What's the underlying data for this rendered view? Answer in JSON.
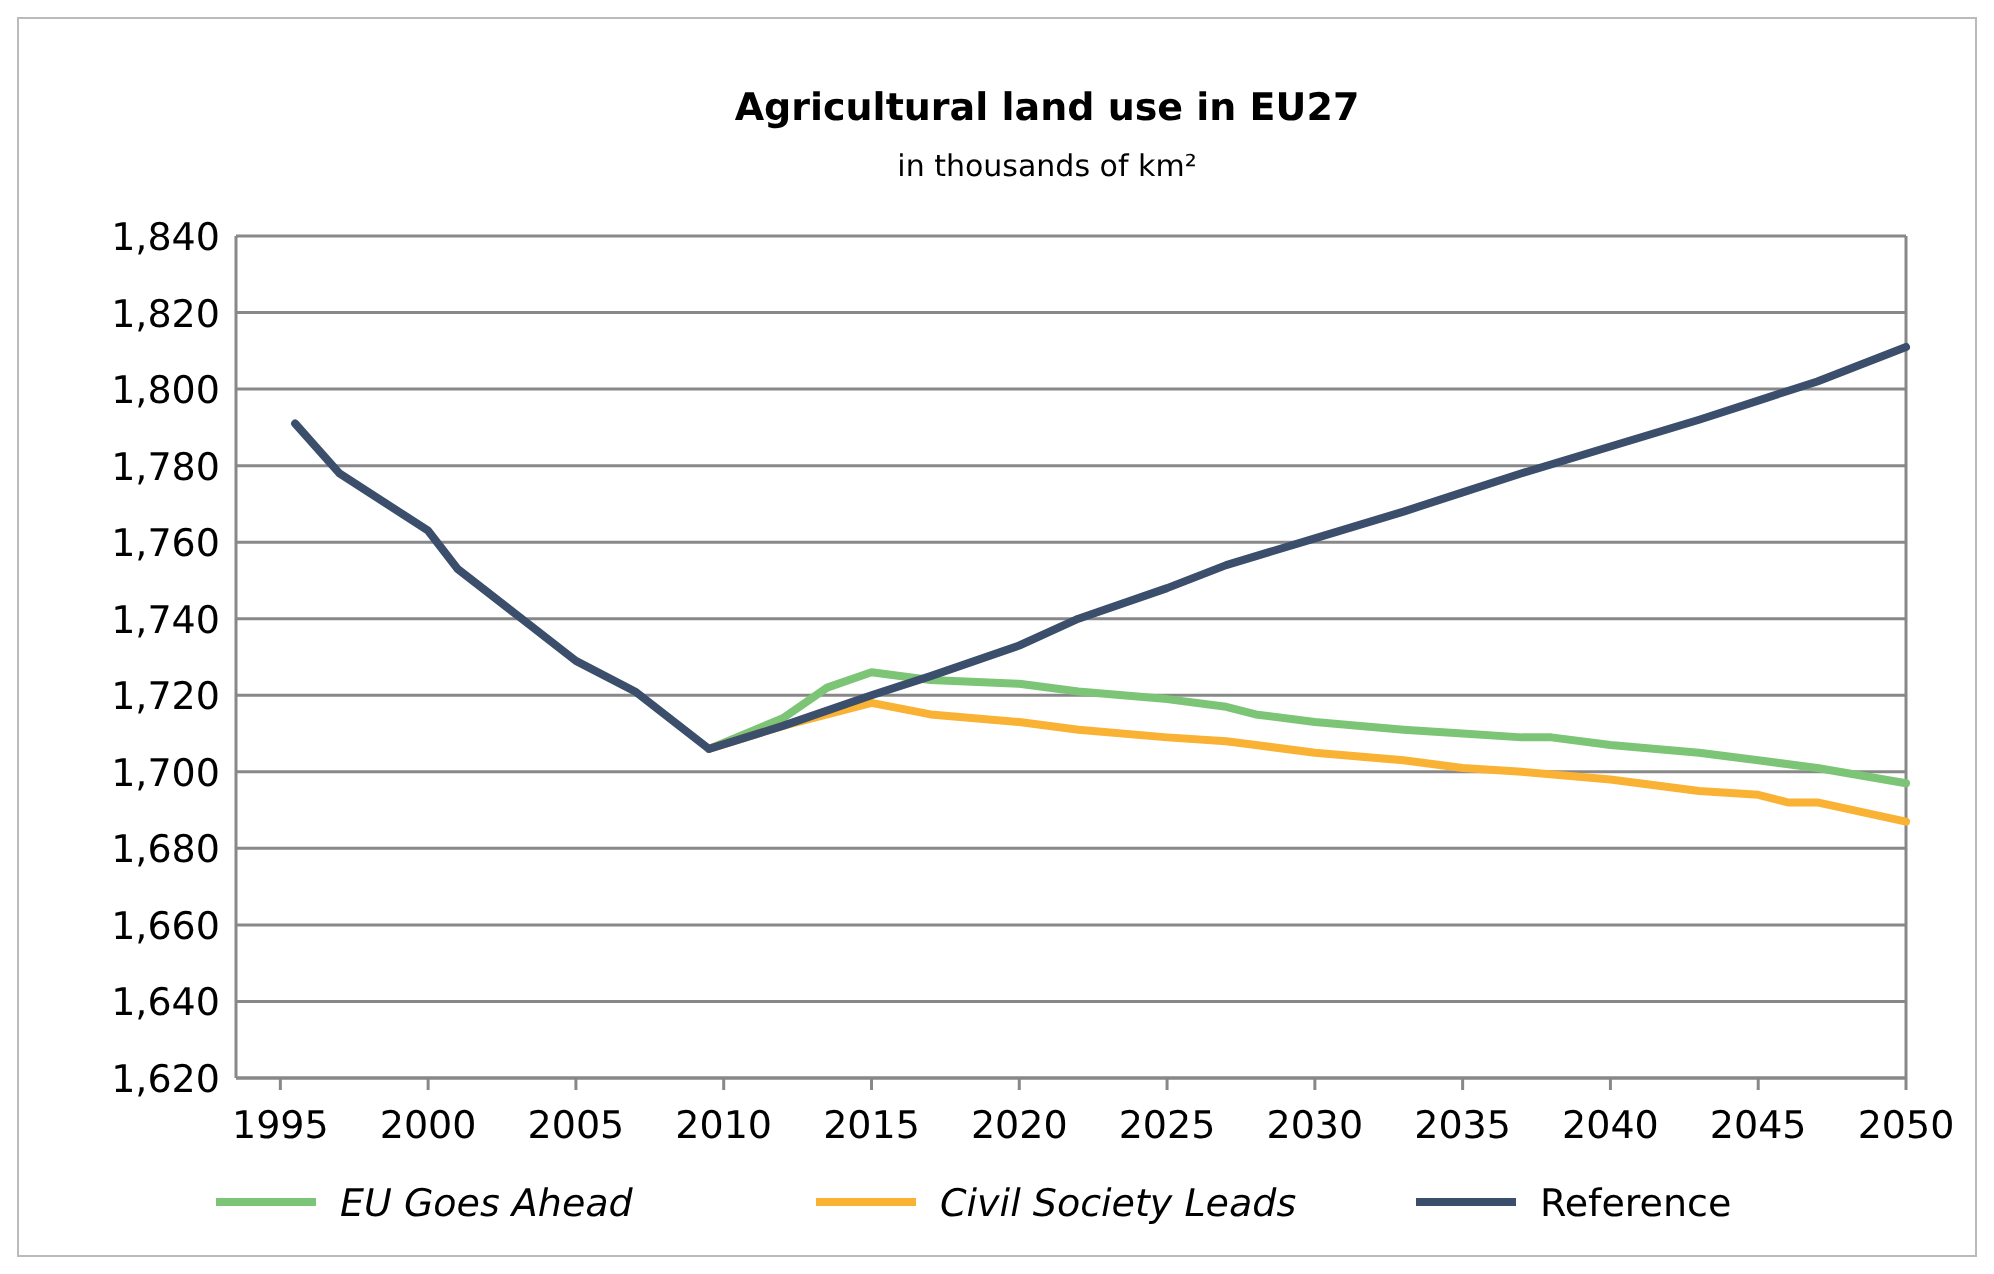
{
  "chart_data": {
    "type": "line",
    "title": "Agricultural land use in EU27",
    "subtitle": "in thousands of km²",
    "xlim": [
      1993.5,
      2050
    ],
    "xticks": [
      1995,
      2000,
      2005,
      2010,
      2015,
      2020,
      2025,
      2030,
      2035,
      2040,
      2045,
      2050
    ],
    "ylim": [
      1620,
      1840
    ],
    "yticks": [
      {
        "value": 1620,
        "label": "1,620"
      },
      {
        "value": 1640,
        "label": "1,640"
      },
      {
        "value": 1660,
        "label": "1,660"
      },
      {
        "value": 1680,
        "label": "1,680"
      },
      {
        "value": 1700,
        "label": "1,700"
      },
      {
        "value": 1720,
        "label": "1,720"
      },
      {
        "value": 1740,
        "label": "1,740"
      },
      {
        "value": 1760,
        "label": "1,760"
      },
      {
        "value": 1780,
        "label": "1,780"
      },
      {
        "value": 1800,
        "label": "1,800"
      },
      {
        "value": 1820,
        "label": "1,820"
      },
      {
        "value": 1840,
        "label": "1,840"
      }
    ],
    "grid": "y",
    "legend": "bottom",
    "marker": "none",
    "line_style": "solid",
    "series": [
      {
        "name": "EU Goes Ahead",
        "color": "#7cc576",
        "x": [
          2009.5,
          2012,
          2013.5,
          2015,
          2017,
          2020,
          2022,
          2025,
          2027,
          2028,
          2030,
          2033,
          2035,
          2037,
          2038,
          2040,
          2043,
          2045,
          2047,
          2050
        ],
        "values": [
          1706,
          1714,
          1722,
          1726,
          1724,
          1723,
          1721,
          1719,
          1717,
          1715,
          1713,
          1711,
          1710,
          1709,
          1709,
          1707,
          1705,
          1703,
          1701,
          1697
        ]
      },
      {
        "name": "Civil Society Leads",
        "color": "#f9b233",
        "x": [
          2009.5,
          2012,
          2015,
          2017,
          2020,
          2022,
          2025,
          2027,
          2028,
          2030,
          2033,
          2035,
          2037,
          2040,
          2043,
          2045,
          2046,
          2047,
          2050
        ],
        "values": [
          1706,
          1712,
          1718,
          1715,
          1713,
          1711,
          1709,
          1708,
          1707,
          1705,
          1703,
          1701,
          1700,
          1698,
          1695,
          1694,
          1692,
          1692,
          1687
        ]
      },
      {
        "name": "Reference",
        "color": "#3b4e6b",
        "x": [
          1995.5,
          1997,
          2000,
          2001,
          2003,
          2005,
          2007,
          2009.5,
          2012,
          2015,
          2017,
          2020,
          2022,
          2025,
          2027,
          2030,
          2033,
          2035,
          2037,
          2040,
          2043,
          2045,
          2047,
          2050
        ],
        "values": [
          1791,
          1778,
          1763,
          1753,
          1741,
          1729,
          1721,
          1706,
          1712,
          1720,
          1725,
          1733,
          1740,
          1748,
          1754,
          1761,
          1768,
          1773,
          1778,
          1785,
          1792,
          1797,
          1802,
          1811
        ]
      }
    ]
  }
}
